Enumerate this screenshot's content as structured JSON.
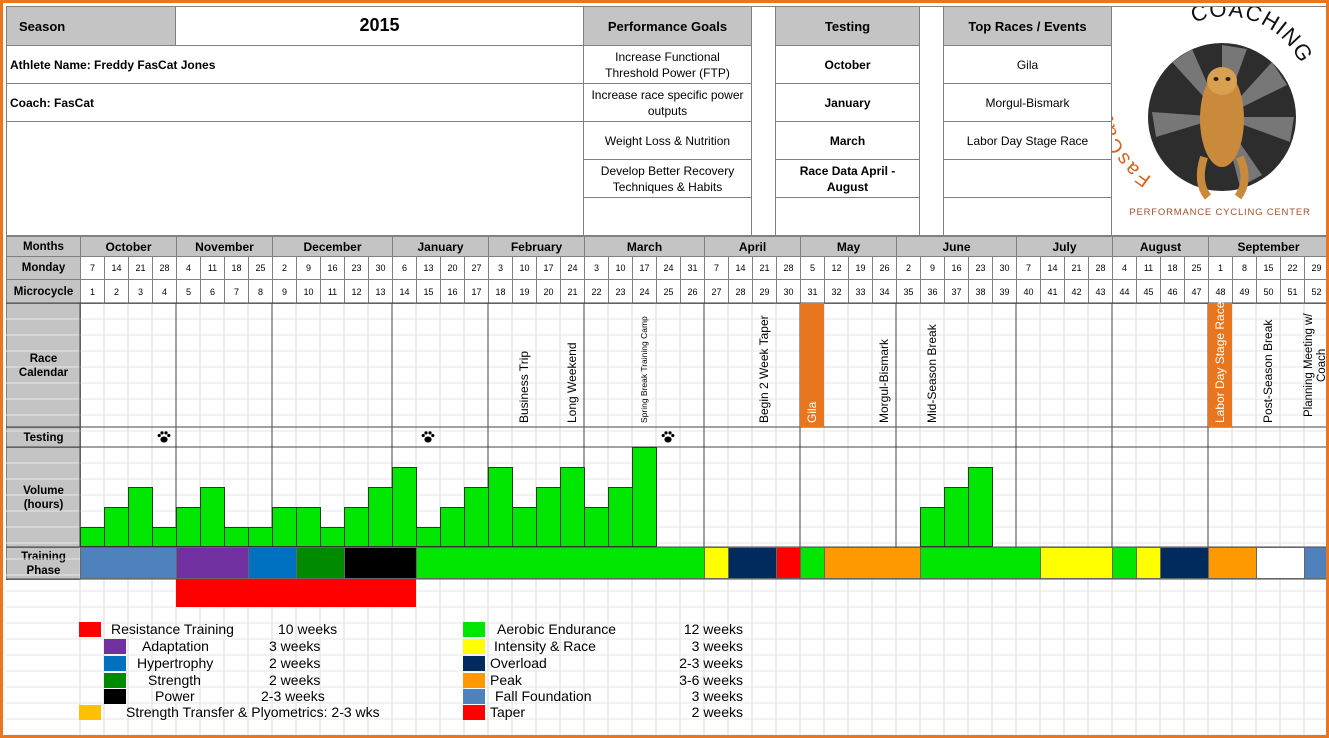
{
  "header": {
    "season_label": "Season",
    "season_value": "2015",
    "athlete": "Athlete Name: Freddy FasCat Jones",
    "coach": "Coach: FasCat"
  },
  "goals": {
    "title": "Performance Goals",
    "items": [
      "Increase Functional Threshold Power (FTP)",
      "Increase race specific power outputs",
      "Weight Loss & Nutrition",
      "Develop Better Recovery Techniques & Habits",
      ""
    ]
  },
  "testing": {
    "title": "Testing",
    "items": [
      "October",
      "January",
      "March",
      "Race Data April - August",
      ""
    ]
  },
  "top_races": {
    "title": "Top Races / Events",
    "items": [
      "Gila",
      "Morgul-Bismark",
      "Labor Day Stage Race",
      "",
      ""
    ]
  },
  "logo": {
    "brand": "FasCat COACHING",
    "brand_left": "FasCat",
    "brand_right": "COACHING",
    "tagline": "Performance Cycling Center"
  },
  "row_labels": {
    "months": "Months",
    "monday": "Monday",
    "microcycle": "Microcycle",
    "race_calendar": "Race Calendar",
    "testing": "Testing",
    "volume": "Volume (hours)",
    "training_phase": "Training Phase"
  },
  "months": [
    "October",
    "November",
    "December",
    "January",
    "February",
    "March",
    "April",
    "May",
    "June",
    "July",
    "August",
    "September"
  ],
  "month_weeks": [
    4,
    4,
    5,
    4,
    4,
    5,
    4,
    4,
    5,
    4,
    4,
    5
  ],
  "mondays": [
    "7",
    "14",
    "21",
    "28",
    "4",
    "11",
    "18",
    "25",
    "2",
    "9",
    "16",
    "23",
    "30",
    "6",
    "13",
    "20",
    "27",
    "3",
    "10",
    "17",
    "24",
    "3",
    "10",
    "17",
    "24",
    "31",
    "7",
    "14",
    "21",
    "28",
    "5",
    "12",
    "19",
    "26",
    "2",
    "9",
    "16",
    "23",
    "30",
    "7",
    "14",
    "21",
    "28",
    "4",
    "11",
    "18",
    "25",
    "1",
    "8",
    "15",
    "22",
    "29"
  ],
  "microcycles": [
    "1",
    "2",
    "3",
    "4",
    "5",
    "6",
    "7",
    "8",
    "9",
    "10",
    "11",
    "12",
    "13",
    "14",
    "15",
    "16",
    "17",
    "18",
    "19",
    "20",
    "21",
    "22",
    "23",
    "24",
    "25",
    "26",
    "27",
    "28",
    "29",
    "30",
    "31",
    "32",
    "33",
    "34",
    "35",
    "36",
    "37",
    "38",
    "39",
    "40",
    "41",
    "42",
    "43",
    "44",
    "45",
    "46",
    "47",
    "48",
    "49",
    "50",
    "51",
    "52"
  ],
  "race_events": [
    {
      "week": 18,
      "label": "Business Trip",
      "highlight": false,
      "small": false
    },
    {
      "week": 20,
      "label": "Long Weekend",
      "highlight": false,
      "small": false
    },
    {
      "week": 23,
      "label": "Spring Break Training Camp",
      "highlight": false,
      "small": true
    },
    {
      "week": 28,
      "label": "Begin 2 Week Taper",
      "highlight": false,
      "small": false
    },
    {
      "week": 30,
      "label": "Gila",
      "highlight": true,
      "small": false
    },
    {
      "week": 33,
      "label": "Morgul-Bismark",
      "highlight": false,
      "small": false
    },
    {
      "week": 35,
      "label": "Mid-Season Break",
      "highlight": false,
      "small": false
    },
    {
      "week": 47,
      "label": "Labor Day Stage Race",
      "highlight": true,
      "small": false
    },
    {
      "week": 49,
      "label": "Post-Season Break",
      "highlight": false,
      "small": false
    },
    {
      "week": 51,
      "label": "Planning Meeting w/ Coach",
      "highlight": false,
      "small": false
    }
  ],
  "testing_weeks": [
    3,
    14,
    24
  ],
  "testing_icon": "paw-icon",
  "volume_levels": [
    1,
    2,
    3,
    1,
    2,
    3,
    1,
    1,
    2,
    2,
    1,
    2,
    3,
    4,
    1,
    2,
    3,
    4,
    2,
    3,
    4,
    2,
    3,
    5,
    0,
    0,
    0,
    0,
    0,
    0,
    0,
    0,
    0,
    0,
    0,
    2,
    3,
    4,
    0,
    0,
    0,
    0,
    0,
    0,
    0,
    0,
    0,
    0,
    0,
    0,
    0,
    0
  ],
  "volume_max": 5,
  "training_phases": [
    {
      "start": 0,
      "weeks": 4,
      "color": "#4f81bd"
    },
    {
      "start": 4,
      "weeks": 3,
      "color": "#7030a0"
    },
    {
      "start": 7,
      "weeks": 2,
      "color": "#0070c0"
    },
    {
      "start": 9,
      "weeks": 2,
      "color": "#008a00"
    },
    {
      "start": 11,
      "weeks": 3,
      "color": "#000000"
    },
    {
      "start": 14,
      "weeks": 12,
      "color": "#00e600"
    },
    {
      "start": 26,
      "weeks": 1,
      "color": "#ffff00"
    },
    {
      "start": 27,
      "weeks": 2,
      "color": "#002b5c"
    },
    {
      "start": 29,
      "weeks": 1,
      "color": "#ff0000"
    },
    {
      "start": 30,
      "weeks": 1,
      "color": "#00e600"
    },
    {
      "start": 31,
      "weeks": 4,
      "color": "#ff9900"
    },
    {
      "start": 35,
      "weeks": 5,
      "color": "#00e600"
    },
    {
      "start": 40,
      "weeks": 3,
      "color": "#ffff00"
    },
    {
      "start": 43,
      "weeks": 1,
      "color": "#00e600"
    },
    {
      "start": 44,
      "weeks": 1,
      "color": "#ffff00"
    },
    {
      "start": 45,
      "weeks": 2,
      "color": "#002b5c"
    },
    {
      "start": 47,
      "weeks": 2,
      "color": "#ff9900"
    },
    {
      "start": 49,
      "weeks": 2,
      "color": "#ffffff"
    },
    {
      "start": 51,
      "weeks": 2,
      "color": "#4f81bd"
    }
  ],
  "resistance_bar": {
    "start": 4,
    "weeks": 10,
    "color": "#ff0000"
  },
  "legend_left": [
    {
      "label": "Resistance Training",
      "weeks": "10 weeks",
      "color": "#ff0000"
    },
    {
      "label": "Adaptation",
      "weeks": "3 weeks",
      "color": "#7030a0"
    },
    {
      "label": "Hypertrophy",
      "weeks": "2 weeks",
      "color": "#0070c0"
    },
    {
      "label": "Strength",
      "weeks": "2 weeks",
      "color": "#008a00"
    },
    {
      "label": "Power",
      "weeks": "2-3 weeks",
      "color": "#000000"
    },
    {
      "label": "Strength Transfer & Plyometrics: 2-3 wks",
      "weeks": "",
      "color": "#ffc000"
    }
  ],
  "legend_right": [
    {
      "label": "Aerobic Endurance",
      "weeks": "12  weeks",
      "color": "#00e600"
    },
    {
      "label": "Intensity & Race",
      "weeks": "3 weeks",
      "color": "#ffff00"
    },
    {
      "label": "Overload",
      "weeks": "2-3 weeks",
      "color": "#002b5c"
    },
    {
      "label": "Peak",
      "weeks": "3-6 weeks",
      "color": "#ff9900"
    },
    {
      "label": "Fall Foundation",
      "weeks": "3 weeks",
      "color": "#4f81bd"
    },
    {
      "label": "Taper",
      "weeks": "2 weeks",
      "color": "#ff0000"
    }
  ],
  "colors": {
    "accent": "#e8761e",
    "header_gray": "#c4c4c4",
    "volume_green": "#00e600"
  }
}
